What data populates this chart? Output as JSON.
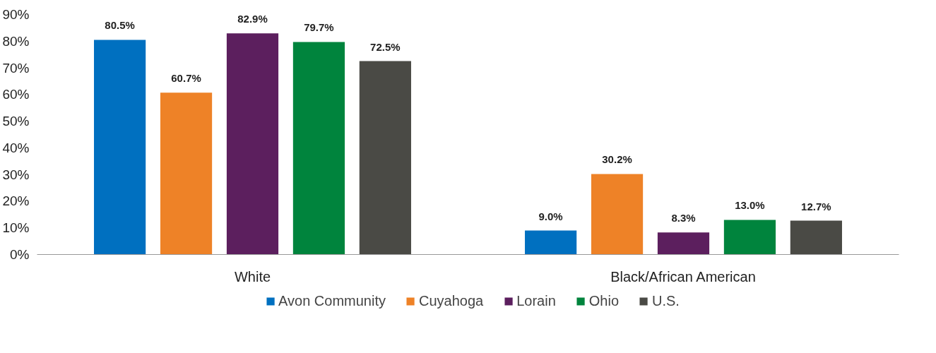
{
  "chart_data": {
    "type": "bar",
    "categories": [
      "White",
      "Black/African American"
    ],
    "series": [
      {
        "name": "Avon Community",
        "color": "#0070c0",
        "values": [
          80.5,
          9.0
        ],
        "value_labels": [
          "80.5%",
          "9.0%"
        ]
      },
      {
        "name": "Cuyahoga",
        "color": "#ee8227",
        "values": [
          60.7,
          30.2
        ],
        "value_labels": [
          "60.7%",
          "30.2%"
        ]
      },
      {
        "name": "Lorain",
        "color": "#5c1f5e",
        "values": [
          82.9,
          8.3
        ],
        "value_labels": [
          "82.9%",
          "8.3%"
        ]
      },
      {
        "name": "Ohio",
        "color": "#00843d",
        "values": [
          79.7,
          13.0
        ],
        "value_labels": [
          "79.7%",
          "13.0%"
        ]
      },
      {
        "name": "U.S.",
        "color": "#4a4a45",
        "values": [
          72.5,
          12.7
        ],
        "value_labels": [
          "72.5%",
          "12.7%"
        ]
      }
    ],
    "ylim": [
      0,
      90
    ],
    "yticks": [
      {
        "value": 0,
        "label": "0%"
      },
      {
        "value": 10,
        "label": "10%"
      },
      {
        "value": 20,
        "label": "20%"
      },
      {
        "value": 30,
        "label": "30%"
      },
      {
        "value": 40,
        "label": "40%"
      },
      {
        "value": 50,
        "label": "50%"
      },
      {
        "value": 60,
        "label": "60%"
      },
      {
        "value": 70,
        "label": "70%"
      },
      {
        "value": 80,
        "label": "80%"
      },
      {
        "value": 90,
        "label": "90%"
      }
    ],
    "grid": false,
    "legend": "bottom"
  }
}
